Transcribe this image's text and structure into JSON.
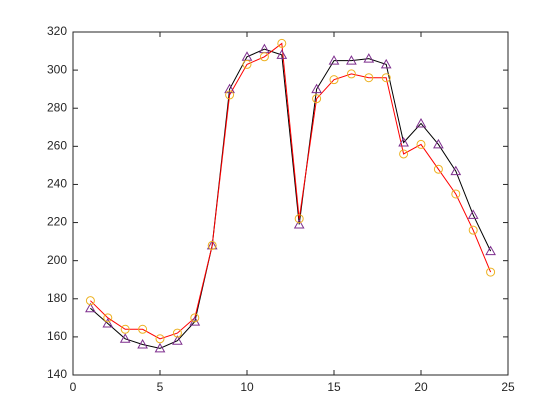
{
  "chart_data": {
    "type": "line",
    "x": [
      1,
      2,
      3,
      4,
      5,
      6,
      7,
      8,
      9,
      10,
      11,
      12,
      13,
      14,
      15,
      16,
      17,
      18,
      19,
      20,
      21,
      22,
      23,
      24
    ],
    "series": [
      {
        "color": "#000000",
        "marker": "triangle",
        "marker_color": "#7e2f8e",
        "values": [
          175,
          167,
          159,
          156,
          154,
          158,
          168,
          208,
          290,
          307,
          311,
          308,
          219,
          290,
          305,
          305,
          306,
          303,
          262,
          272,
          261,
          247,
          224,
          205
        ]
      },
      {
        "color": "#ff0000",
        "marker": "circle",
        "marker_color": "#edb120",
        "values": [
          179,
          170,
          164,
          164,
          159,
          162,
          170,
          208,
          287,
          303,
          307,
          314,
          222,
          285,
          295,
          298,
          296,
          296,
          256,
          261,
          248,
          235,
          216,
          194
        ]
      }
    ],
    "xlim": [
      0,
      25
    ],
    "xticks": [
      0,
      5,
      10,
      15,
      20,
      25
    ],
    "ylim": [
      140,
      320
    ],
    "yticks": [
      140,
      160,
      180,
      200,
      220,
      240,
      260,
      280,
      300,
      320
    ],
    "grid": false
  }
}
